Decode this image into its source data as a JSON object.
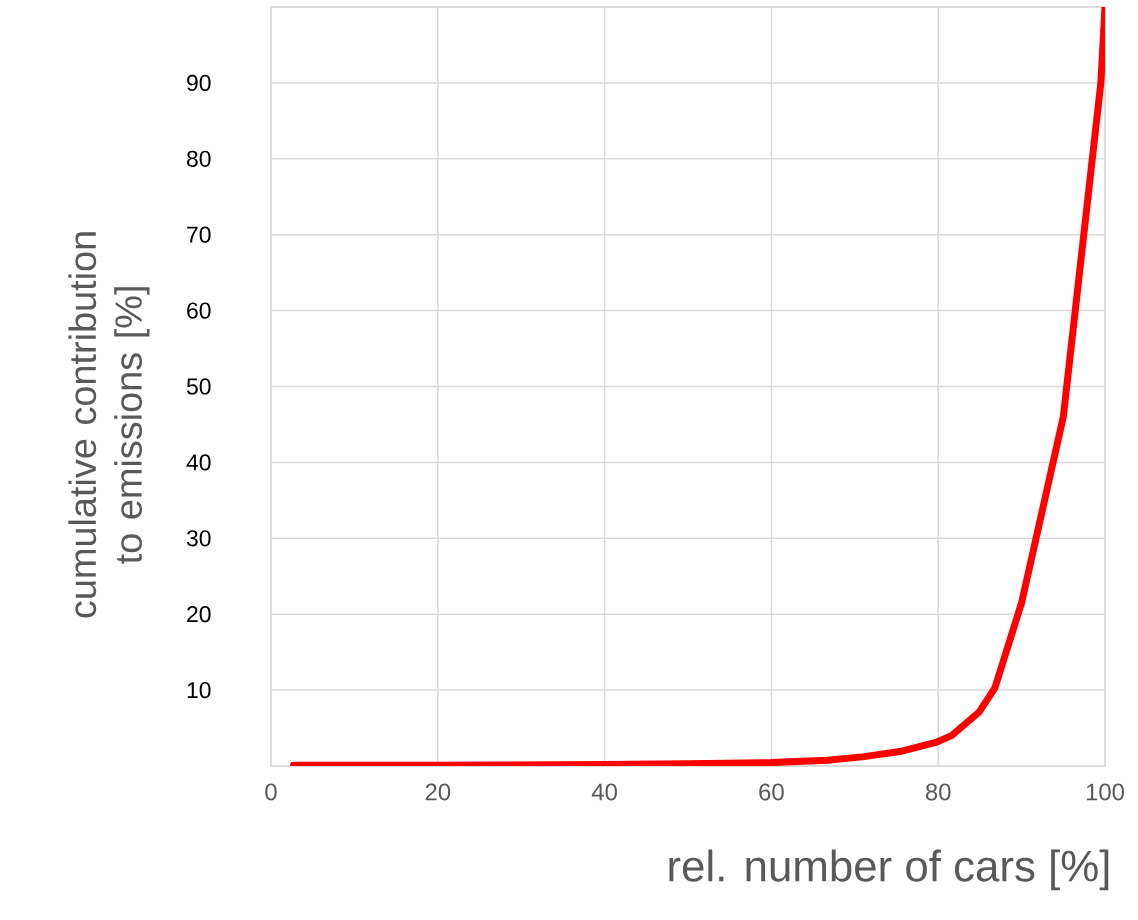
{
  "chart_data": {
    "type": "line",
    "xlabel": "rel. number of cars [%]",
    "ylabel": "cumulative contribution to emissions [%]",
    "x": [
      2.7,
      20,
      40,
      50,
      60,
      66.7,
      70.9,
      75.4,
      79.7,
      81.6,
      84.9,
      86.8,
      90,
      95,
      99.5,
      100
    ],
    "series": [
      {
        "color": "#ff0000",
        "values": [
          0.1,
          0.1,
          0.2,
          0.3,
          0.45,
          0.75,
          1.2,
          1.9,
          3.1,
          4.0,
          7.1,
          10.3,
          21.5,
          46,
          90,
          100
        ]
      }
    ],
    "xlim": [
      0,
      100
    ],
    "ylim": [
      0,
      100
    ],
    "xticks": [
      0,
      20,
      40,
      60,
      80,
      100
    ],
    "yticks": [
      {
        "value": 0,
        "label": null
      },
      10,
      20,
      30,
      40,
      50,
      60,
      70,
      80,
      90,
      {
        "value": 100,
        "label": null
      }
    ],
    "grid": true,
    "legend": false,
    "marker": "none",
    "line_style": "solid"
  }
}
